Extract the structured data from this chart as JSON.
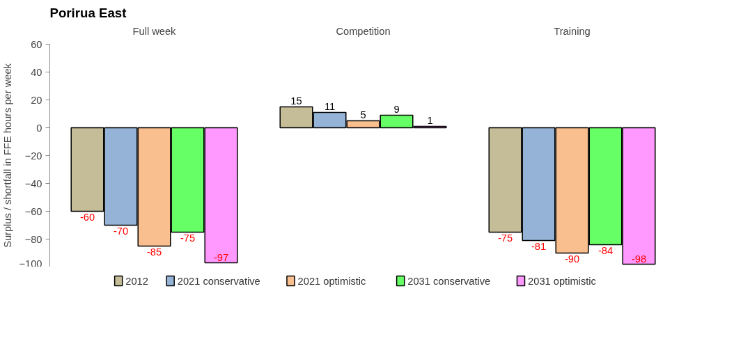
{
  "chart_data": {
    "type": "bar",
    "title": "Porirua East",
    "ylabel": "Surplus / shortfall in FFE hours per week",
    "categories": [
      "Full week",
      "Competition",
      "Training"
    ],
    "series": [
      {
        "name": "2012",
        "color": "#c4bd97",
        "values": [
          -60,
          15,
          -75
        ]
      },
      {
        "name": "2021 conservative",
        "color": "#95b3d7",
        "values": [
          -70,
          11,
          -81
        ]
      },
      {
        "name": "2021 optimistic",
        "color": "#fabf8f",
        "values": [
          -85,
          5,
          -90
        ]
      },
      {
        "name": "2031 conservative",
        "color": "#66ff66",
        "values": [
          -75,
          9,
          -84
        ]
      },
      {
        "name": "2031 optimistic",
        "color": "#ff99ff",
        "values": [
          -97,
          1,
          -98
        ]
      }
    ],
    "ylim": [
      -100,
      60
    ],
    "yticks": [
      -100,
      -80,
      -60,
      -40,
      -20,
      0,
      20,
      40,
      60
    ],
    "grid": false,
    "legend": "bottom",
    "data_labels": true
  }
}
